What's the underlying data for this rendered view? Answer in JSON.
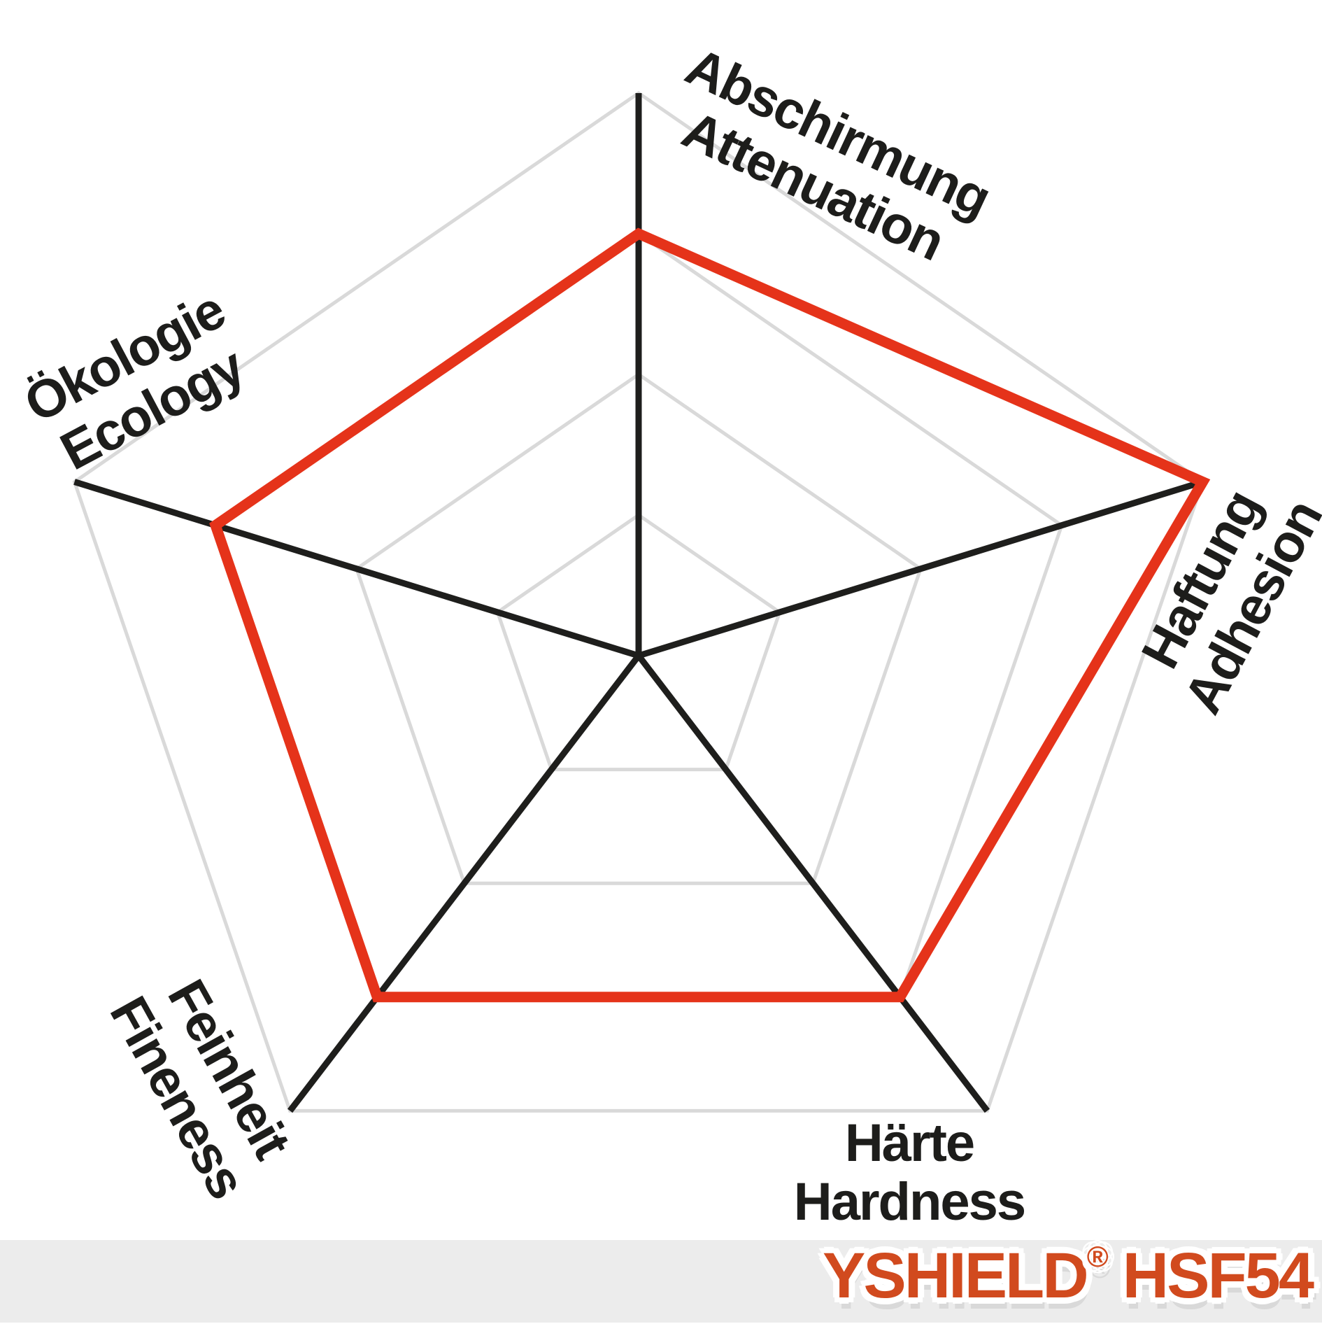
{
  "page": {
    "background": "#ffffff"
  },
  "chart_data": {
    "type": "radar",
    "title": "",
    "shape": "pentagon",
    "axes": [
      {
        "label_de": "Abschirmung",
        "label_en": "Attenuation",
        "value": 3
      },
      {
        "label_de": "Haftung",
        "label_en": "Adhesion",
        "value": 4
      },
      {
        "label_de": "Härte",
        "label_en": "Hardness",
        "value": 3
      },
      {
        "label_de": "Feinheit",
        "label_en": "Fineness",
        "value": 3
      },
      {
        "label_de": "Ökologie",
        "label_en": "Ecology",
        "value": 3
      }
    ],
    "series": [
      {
        "name": "YSHIELD HSF54",
        "values": [
          3,
          4,
          3,
          3,
          3
        ],
        "color": "#e5331a"
      }
    ],
    "scale": {
      "min": 0,
      "max": 4,
      "rings": [
        1,
        2,
        3,
        4
      ]
    },
    "grid_on": true,
    "grid_color": "#d9d9d9",
    "axis_color": "#1e1e1c",
    "legend_position": "none"
  },
  "brand": {
    "name": "YSHIELD",
    "reg": "®",
    "model": "HSF54",
    "color": "#d14a1e",
    "bar_color": "#ececec"
  }
}
